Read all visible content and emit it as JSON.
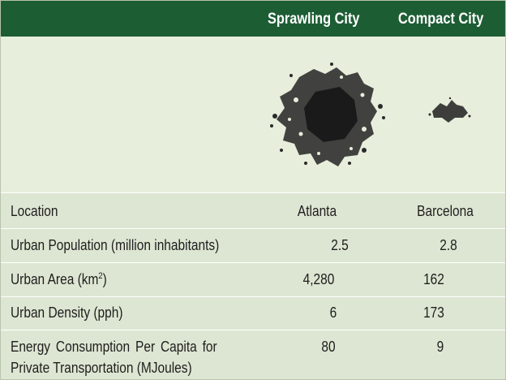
{
  "header": {
    "sprawling_label": "Sprawling City",
    "compact_label": "Compact City"
  },
  "maps": {
    "sprawling_map": "atlanta-urban-footprint-map",
    "compact_map": "barcelona-urban-footprint-map"
  },
  "rows": [
    {
      "label": "Location",
      "sprawling": "Atlanta",
      "compact": "Barcelona"
    },
    {
      "label": "Urban Population (million inhabitants)",
      "sprawling": "2.5",
      "compact": "2.8"
    },
    {
      "label_main": "Urban Area (km",
      "label_sup": "2",
      "label_end": ")",
      "sprawling": "4,280",
      "compact": "162"
    },
    {
      "label": "Urban Density (pph)",
      "sprawling": "6",
      "compact": "173"
    },
    {
      "label_line1": "Energy Consumption Per Capita for",
      "label_line2": "Private Transportation (MJoules)",
      "sprawling": "80",
      "compact": "9"
    }
  ],
  "colors": {
    "header_bg": "#1d5d34",
    "body_bg": "#dde6d2",
    "map_bg": "#e7eedb",
    "map_ink": "#2a2a2a"
  }
}
